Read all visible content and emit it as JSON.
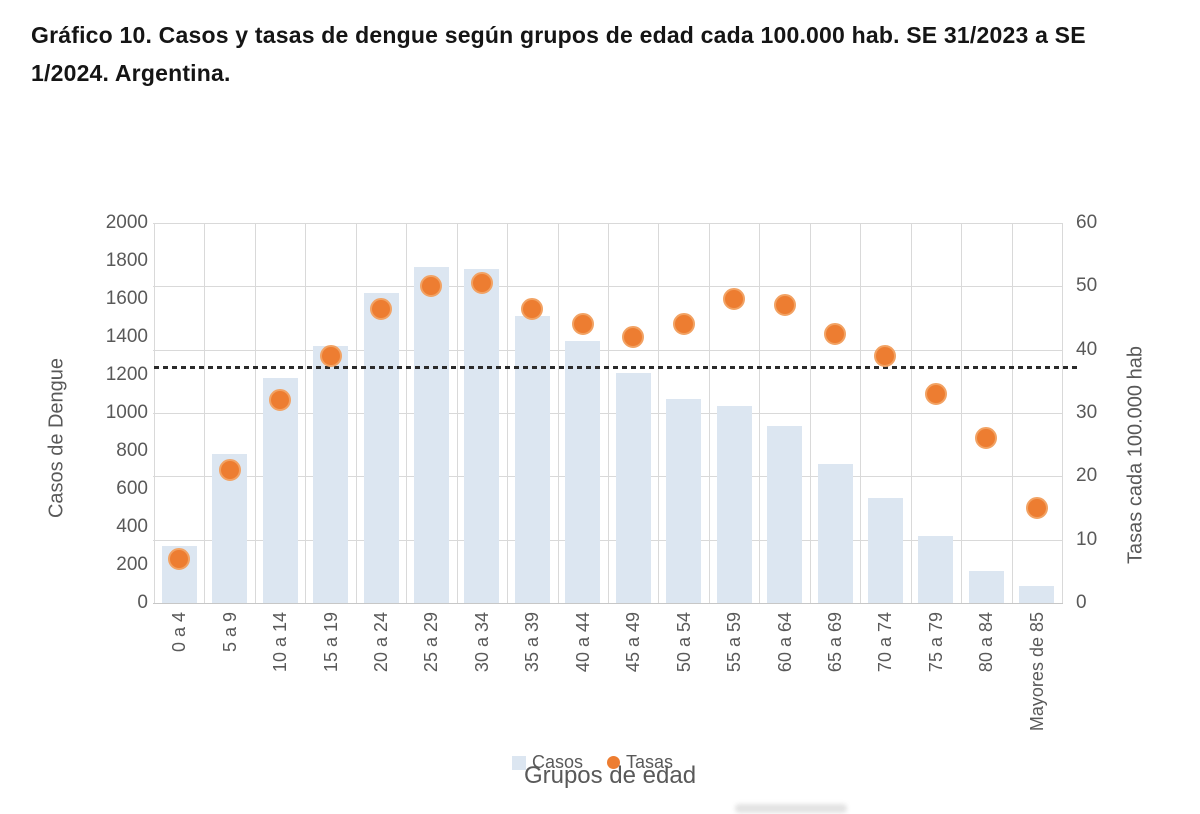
{
  "header": {
    "title_line1": "Gráfico 10. Casos y tasas de dengue según grupos de edad cada 100.000 hab. SE 31/2023 a SE",
    "title_line2": "1/2024. Argentina."
  },
  "chart_data": {
    "type": "combo-bar-scatter",
    "title": "Gráfico 10. Casos y tasas de dengue según grupos de edad cada 100.000 hab. SE 31/2023 a SE 1/2024. Argentina.",
    "categories": [
      "0 a 4",
      "5 a 9",
      "10 a 14",
      "15 a 19",
      "20 a 24",
      "25 a 29",
      "30 a 34",
      "35 a 39",
      "40 a 44",
      "45 a 49",
      "50 a 54",
      "55 a 59",
      "60 a 64",
      "65 a 69",
      "70 a 74",
      "75 a 79",
      "80 a 84",
      "Mayores de 85"
    ],
    "series": [
      {
        "name": "Casos",
        "type": "bar",
        "axis": "left",
        "color": "#DCE6F1",
        "values": [
          300,
          785,
          1185,
          1355,
          1630,
          1770,
          1760,
          1510,
          1380,
          1210,
          1075,
          1035,
          930,
          730,
          555,
          355,
          170,
          90
        ]
      },
      {
        "name": "Tasas",
        "type": "scatter",
        "axis": "right",
        "color": "#ED7D31",
        "marker_ring": "#F2A263",
        "values": [
          7,
          21,
          32,
          39,
          46.5,
          50,
          50.5,
          46.5,
          44,
          42,
          44,
          48,
          47,
          42.5,
          39,
          33,
          26,
          15
        ]
      }
    ],
    "x_axis": {
      "title": "Grupos de edad"
    },
    "y_left": {
      "title": "Casos de Dengue",
      "min": 0,
      "max": 2000,
      "step": 200
    },
    "y_right": {
      "title": "Tasas  cada 100.000 hab",
      "min": 0,
      "max": 60,
      "step": 10
    },
    "reference_line": {
      "axis": "right",
      "value": 37.2,
      "style": "dashed",
      "color": "#2b2b2b"
    },
    "grid": {
      "horizontal": true,
      "vertical": true,
      "color": "#D9D9D9",
      "axis_line_color": "#C7C7C7"
    },
    "legend": {
      "position": "bottom",
      "items": [
        "Casos",
        "Tasas"
      ]
    },
    "text_color": "#595959"
  }
}
